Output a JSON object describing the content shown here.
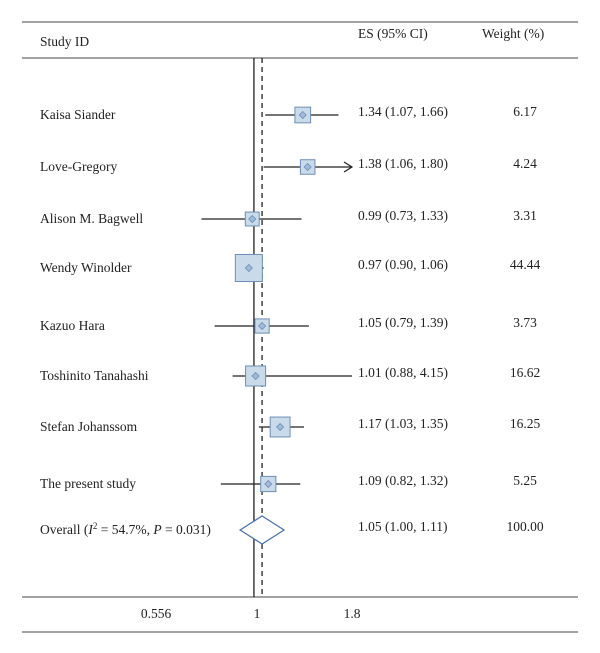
{
  "chart_data": {
    "type": "forest",
    "header": {
      "study": "Study ID",
      "es": "ES (95% CI)",
      "weight": "Weight (%)"
    },
    "x_ticks": [
      "0.556",
      "1",
      "1.8"
    ],
    "null_value": 1,
    "pooled_estimate": 1.05,
    "studies": [
      {
        "name": "Kaisa Siander",
        "es": 1.34,
        "lo": 1.07,
        "hi": 1.66,
        "ci_text": "1.34 (1.07, 1.66)",
        "weight": 6.17,
        "weight_text": "6.17"
      },
      {
        "name": "Love-Gregory",
        "es": 1.38,
        "lo": 1.06,
        "hi": 1.8,
        "ci_text": "1.38 (1.06, 1.80)",
        "weight": 4.24,
        "weight_text": "4.24",
        "arrow_right": true
      },
      {
        "name": "Alison M. Bagwell",
        "es": 0.99,
        "lo": 0.73,
        "hi": 1.33,
        "ci_text": "0.99 (0.73, 1.33)",
        "weight": 3.31,
        "weight_text": "3.31"
      },
      {
        "name": "Wendy Winolder",
        "es": 0.97,
        "lo": 0.9,
        "hi": 1.06,
        "ci_text": "0.97 (0.90, 1.06)",
        "weight": 44.44,
        "weight_text": "44.44"
      },
      {
        "name": "Kazuo Hara",
        "es": 1.05,
        "lo": 0.79,
        "hi": 1.39,
        "ci_text": "1.05 (0.79, 1.39)",
        "weight": 3.73,
        "weight_text": "3.73"
      },
      {
        "name": "Toshinito Tanahashi",
        "es": 1.01,
        "lo": 0.88,
        "hi": 4.15,
        "ci_text": "1.01 (0.88, 4.15)",
        "weight": 16.62,
        "weight_text": "16.62"
      },
      {
        "name": "Stefan Johanssom",
        "es": 1.17,
        "lo": 1.03,
        "hi": 1.35,
        "ci_text": "1.17 (1.03, 1.35)",
        "weight": 16.25,
        "weight_text": "16.25"
      },
      {
        "name": "The present study",
        "es": 1.09,
        "lo": 0.82,
        "hi": 1.32,
        "ci_text": "1.09 (0.82, 1.32)",
        "weight": 5.25,
        "weight_text": "5.25"
      }
    ],
    "overall": {
      "label_prefix": "Overall (",
      "i_symbol": "I",
      "i_superscript": "2",
      "label_i2": " = 54.7%, ",
      "p_symbol": "P",
      "label_suffix": " = 0.031)",
      "es": 1.05,
      "lo": 1.0,
      "hi": 1.11,
      "ci_text": "1.05 (1.00, 1.11)",
      "weight_text": "100.00"
    },
    "colors": {
      "box_fill": "#c9daea",
      "box_stroke": "#6f8fb3",
      "diamond_fill": "#ffffff",
      "diamond_stroke": "#4a6fa5",
      "line": "#222222"
    }
  }
}
